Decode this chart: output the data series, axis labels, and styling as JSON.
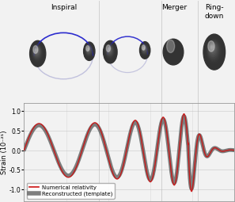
{
  "title_inspiral": "Inspiral",
  "title_merger": "Merger",
  "title_ringdown": "Ring-\ndown",
  "ylabel": "Strain (10⁻²¹)",
  "legend_nr": "Numerical relativity",
  "legend_rec": "Reconstructed (template)",
  "bg_color": "#f2f2f2",
  "plot_bg": "#f2f2f2",
  "nr_color": "#cc1111",
  "rec_color": "#555555",
  "rec_linewidth": 3.5,
  "nr_linewidth": 1.0,
  "grid_color": "#cccccc",
  "orbit_color_front": "#2222cc",
  "orbit_color_back": "#9999cc",
  "yticks": [
    -1.0,
    -0.5,
    0.0,
    0.5,
    1.0
  ],
  "ytick_labels": [
    "-1.0",
    "-0.5",
    "0.0",
    "0.5",
    "1.0"
  ]
}
